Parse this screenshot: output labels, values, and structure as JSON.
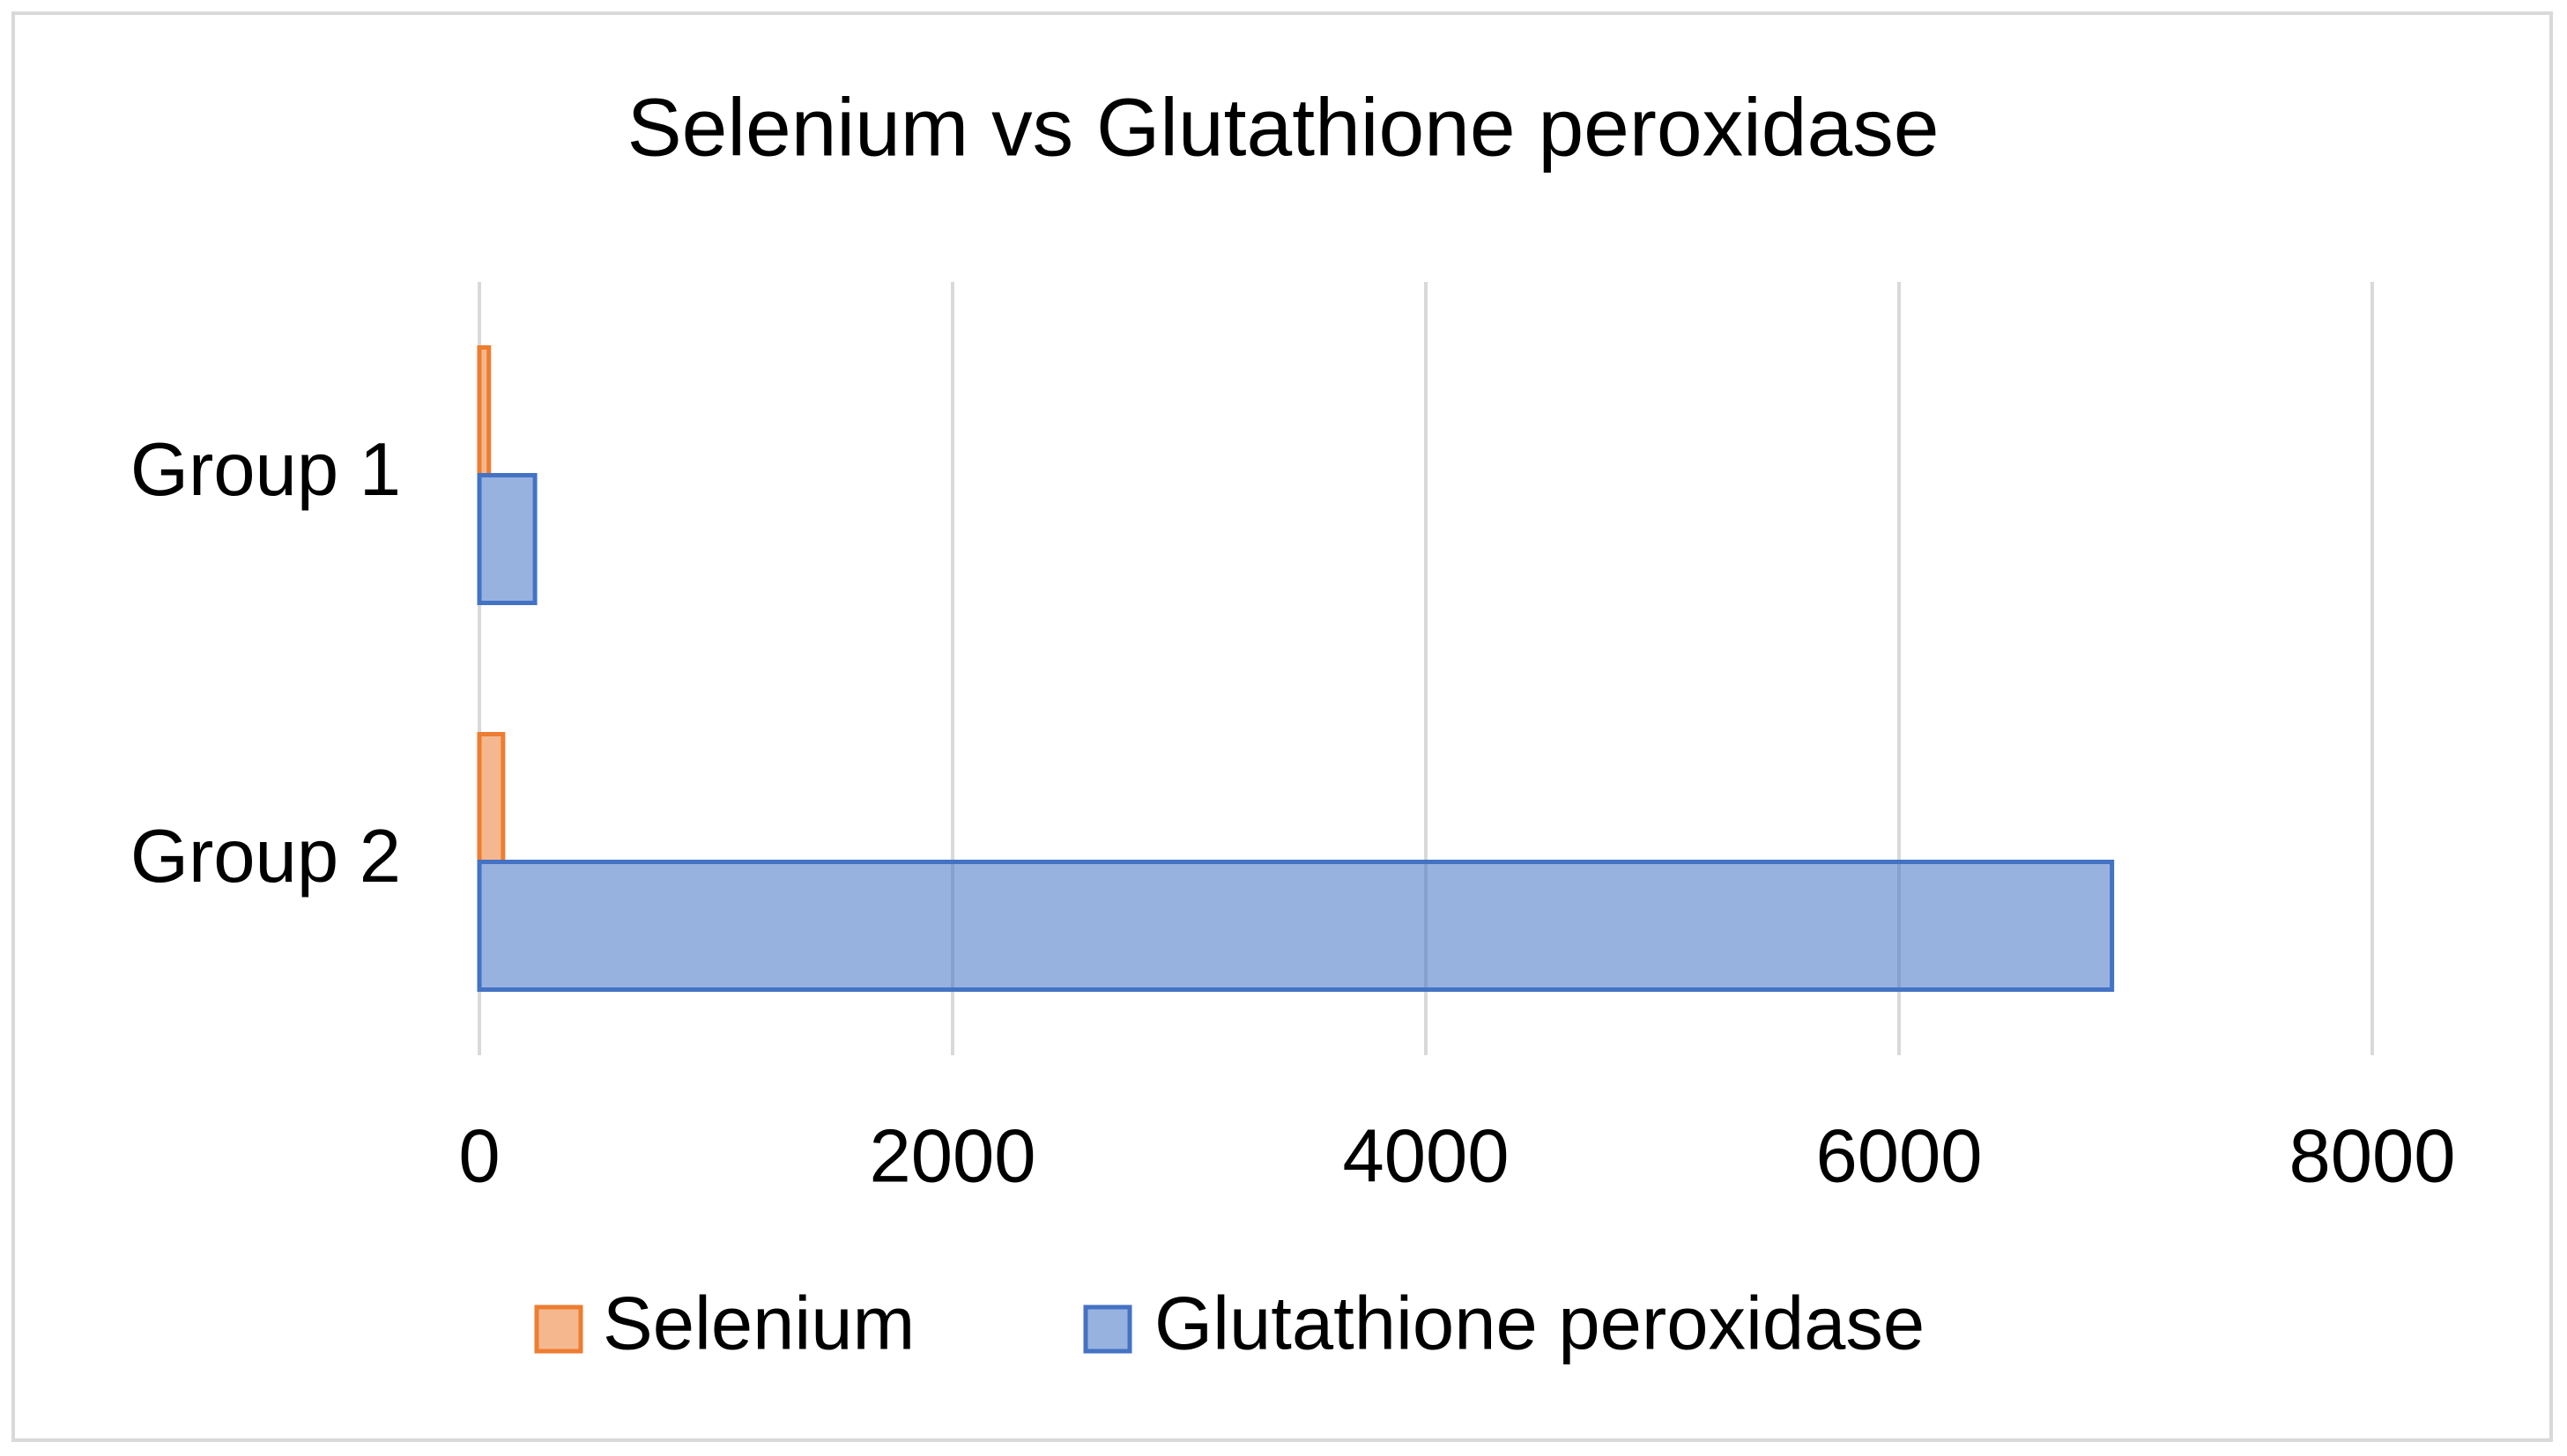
{
  "chart_data": {
    "type": "hbar",
    "title": "Selenium vs Glutathione peroxidase",
    "categories": [
      "Group 1",
      "Group 2"
    ],
    "series": [
      {
        "name": "Selenium",
        "color": "#ed7d31",
        "values": [
          40,
          100
        ]
      },
      {
        "name": "Glutathione peroxidase",
        "color": "#4472c4",
        "values": [
          235,
          6900
        ]
      }
    ],
    "xlim": [
      0,
      8000
    ],
    "xticks": [
      0,
      2000,
      4000,
      6000,
      8000
    ],
    "grid": true,
    "legend": "bottom"
  }
}
